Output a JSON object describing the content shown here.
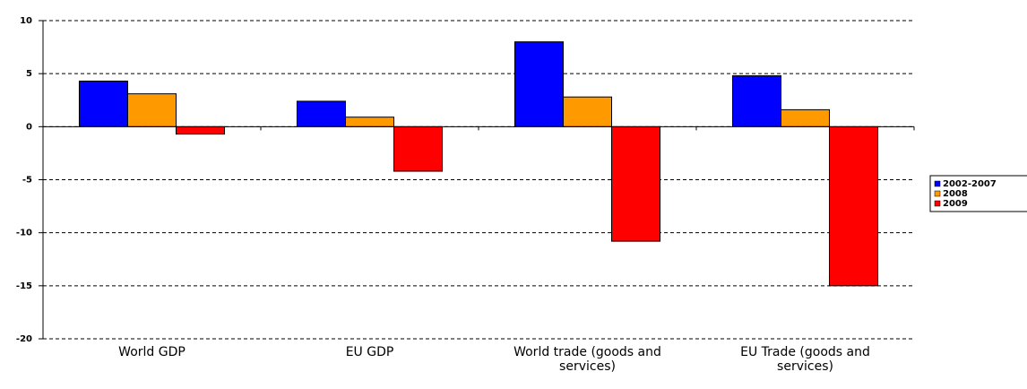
{
  "chart_data": {
    "type": "bar",
    "categories": [
      "World GDP",
      "EU GDP",
      "World trade (goods and services)",
      "EU Trade (goods and services)"
    ],
    "series": [
      {
        "name": "2002-2007",
        "color": "#0000ff",
        "values": [
          4.3,
          2.4,
          8.0,
          4.8
        ]
      },
      {
        "name": "2008",
        "color": "#ff9900",
        "values": [
          3.1,
          0.9,
          2.8,
          1.6
        ]
      },
      {
        "name": "2009",
        "color": "#ff0000",
        "values": [
          -0.7,
          -4.2,
          -10.8,
          -15.0
        ]
      }
    ],
    "ylim": [
      -20,
      10
    ],
    "yticks": [
      10,
      5,
      0,
      -5,
      -10,
      -15,
      -20
    ],
    "grid": true,
    "legend": "right"
  }
}
